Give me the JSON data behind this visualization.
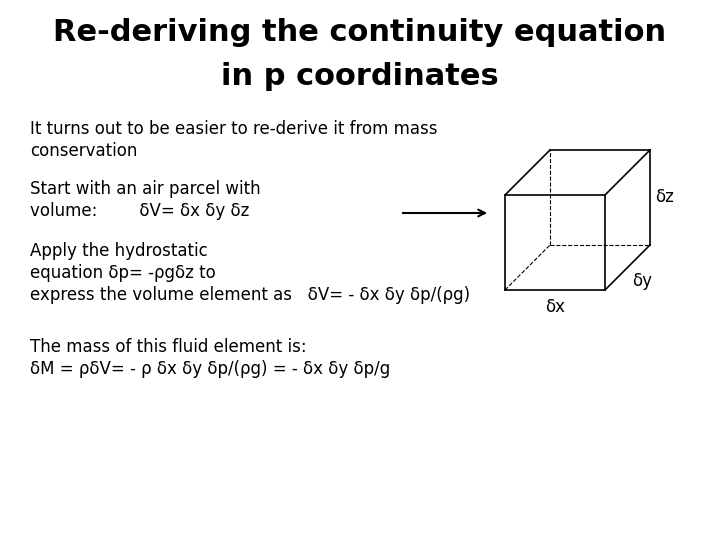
{
  "title_line1": "Re-deriving the continuity equation",
  "title_line2": "in p coordinates",
  "title_fontsize": 22,
  "body_fontsize": 12,
  "background_color": "#ffffff",
  "text_color": "#000000",
  "line1": "It turns out to be easier to re-derive it from mass",
  "line2": "conservation",
  "line3a": "Start with an air parcel with",
  "line3b_part1": "volume:        δV= δx δy δz",
  "line4a": "Apply the hydrostatic",
  "line4b": "equation δp= -ρgδz to",
  "line4c": "express the volume element as   δV= - δx δy δp/(ρg)",
  "line5a": "The mass of this fluid element is:",
  "line5b": "δM = ρδV= - ρ δx δy δp/(ρg) = - δx δy δp/g"
}
